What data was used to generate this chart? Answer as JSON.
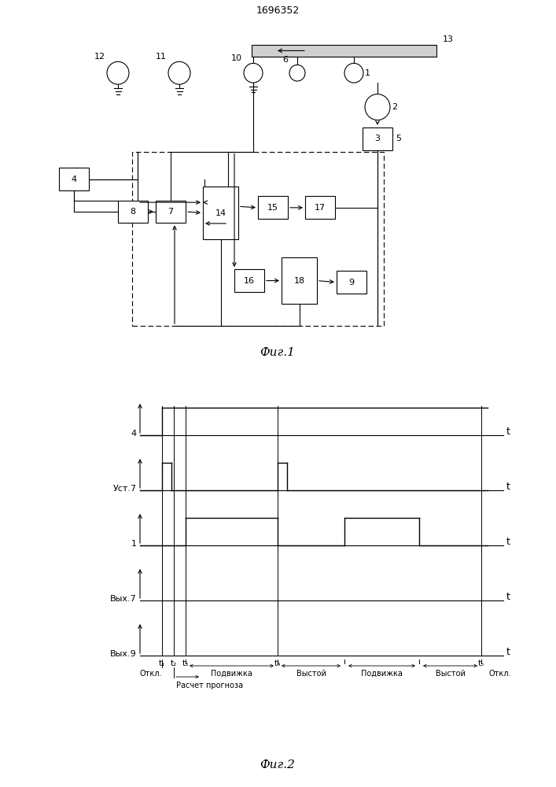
{
  "title": "1696352",
  "fig1_label": "Фиг.1",
  "fig2_label": "Фиг.2",
  "background": "#ffffff",
  "line_color": "#000000",
  "fig2_ylabel_labels": [
    "4",
    "Уст.7",
    "1",
    "Вых.7",
    "Вых.9"
  ],
  "fig2_phase_labels": [
    "Откл.",
    "Подвижка",
    "Выстой",
    "Подвижка",
    "Выстой",
    "Откл."
  ],
  "fig2_calc_label": "Расчет прогноза"
}
